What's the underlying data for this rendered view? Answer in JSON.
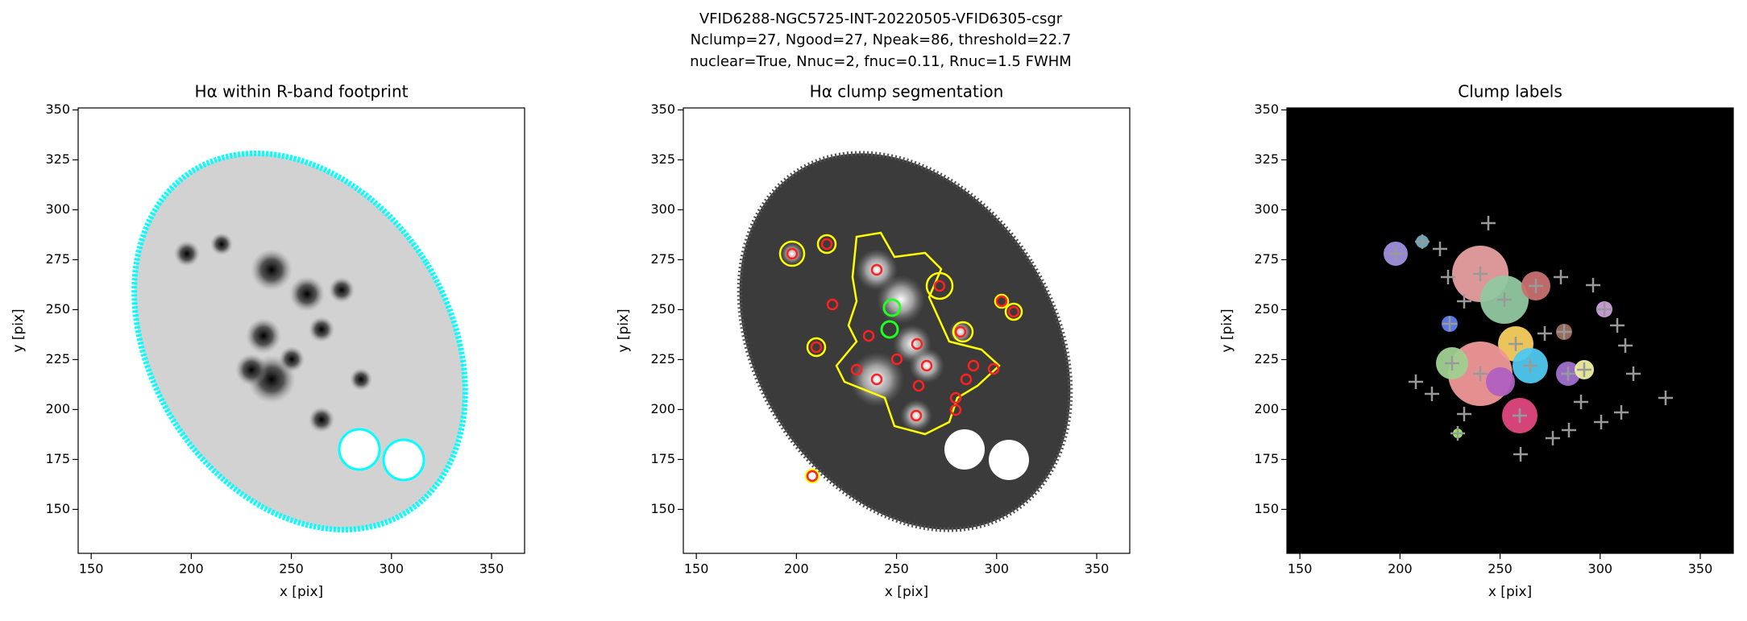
{
  "figure": {
    "title_lines": [
      "VFID6288-NGC5725-INT-20220505-VFID6305-csgr",
      "Nclump=27, Ngood=27, Npeak=86, threshold=22.7",
      "nuclear=True, Nnuc=2, fnuc=0.11, Rnuc=1.5 FWHM"
    ]
  },
  "chart_data": [
    {
      "type": "image",
      "title": "Hα within R-band footprint",
      "xlabel": "x [pix]",
      "ylabel": "y [pix]",
      "xlim": [
        143.5,
        366.5
      ],
      "ylim": [
        128,
        351
      ],
      "xticks": [
        150,
        200,
        250,
        300,
        350
      ],
      "yticks": [
        150,
        175,
        200,
        225,
        250,
        275,
        300,
        325,
        350
      ]
    },
    {
      "type": "image",
      "title": "Hα clump segmentation",
      "xlabel": "x [pix]",
      "ylabel": "y [pix]",
      "xlim": [
        143.5,
        366.5
      ],
      "ylim": [
        128,
        351
      ],
      "xticks": [
        150,
        200,
        250,
        300,
        350
      ],
      "yticks": [
        150,
        175,
        200,
        225,
        250,
        275,
        300,
        325,
        350
      ]
    },
    {
      "type": "image",
      "title": "Clump labels",
      "xlabel": "x [pix]",
      "ylabel": "y [pix]",
      "xlim": [
        143.5,
        366.5
      ],
      "ylim": [
        128,
        351
      ],
      "xticks": [
        150,
        200,
        250,
        300,
        350
      ],
      "yticks": [
        150,
        175,
        200,
        225,
        250,
        275,
        300,
        325,
        350
      ]
    }
  ]
}
